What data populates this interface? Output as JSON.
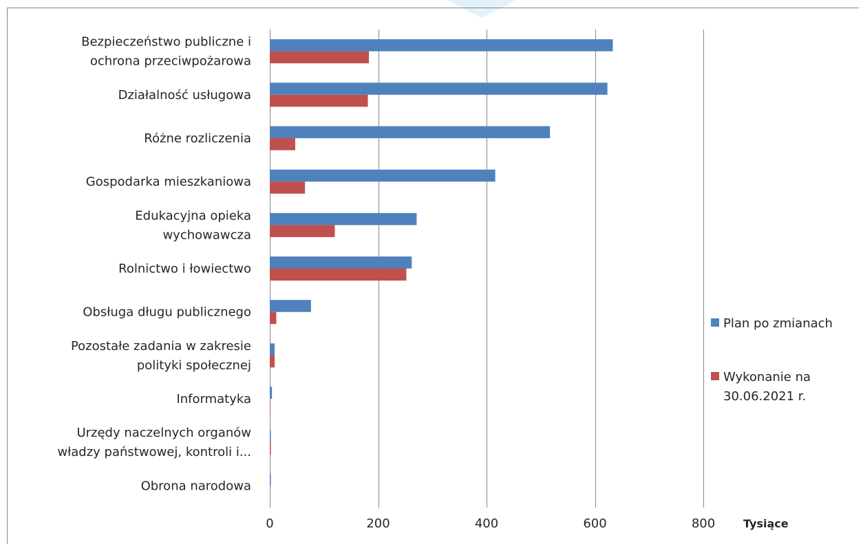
{
  "colors": {
    "plan": "#4F81BD",
    "wykonanie": "#C0504D",
    "grid": "#868686",
    "watermark": "#E3F1FB"
  },
  "chart_data": {
    "type": "bar",
    "orientation": "horizontal",
    "categories": [
      [
        "Bezpieczeństwo publiczne i",
        "ochrona przeciwpożarowa"
      ],
      [
        "Działalność usługowa"
      ],
      [
        "Różne rozliczenia"
      ],
      [
        "Gospodarka mieszkaniowa"
      ],
      [
        "Edukacyjna opieka",
        "wychowawcza"
      ],
      [
        "Rolnictwo i łowiectwo"
      ],
      [
        "Obsługa długu publicznego"
      ],
      [
        "Pozostałe zadania w zakresie",
        "polityki społecznej"
      ],
      [
        "Informatyka"
      ],
      [
        "Urzędy naczelnych organów",
        "władzy państwowej, kontroli i..."
      ],
      [
        "Obrona narodowa"
      ]
    ],
    "series": [
      {
        "name": "Plan po zmianach",
        "values": [
          633,
          623,
          517,
          416,
          271,
          262,
          76,
          9,
          4,
          2,
          2
        ]
      },
      {
        "name": "Wykonanie na 30.06.2021 r.",
        "values": [
          183,
          181,
          47,
          65,
          120,
          252,
          12,
          9,
          1,
          2,
          0
        ]
      }
    ],
    "xlim": [
      0,
      800
    ],
    "xticks": [
      0,
      200,
      400,
      600,
      800
    ],
    "xunit": "Tysiące",
    "grid": true,
    "legend_position": "right",
    "legend": [
      {
        "lines": [
          "Plan po zmianach"
        ]
      },
      {
        "lines": [
          "Wykonanie na",
          "30.06.2021 r."
        ]
      }
    ]
  }
}
